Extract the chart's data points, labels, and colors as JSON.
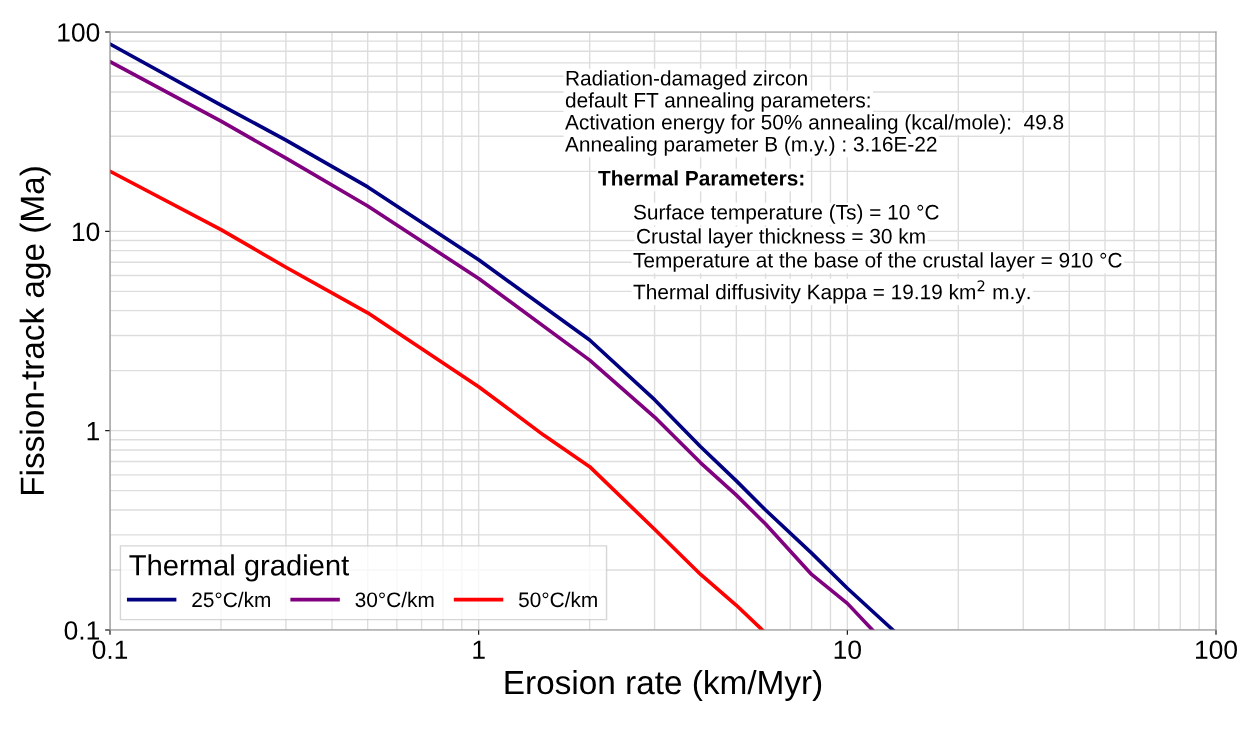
{
  "chart_data": {
    "type": "line",
    "xlabel": "Erosion rate (km/Myr)",
    "ylabel": "Fission-track age (Ma)",
    "legend_title": "Thermal gradient",
    "log": "xy",
    "grid": true,
    "legend": "bottom left",
    "marker": "none",
    "line_style": "solid",
    "xlim": [
      0.1,
      100
    ],
    "xticks": [
      0.1,
      1,
      10,
      100
    ],
    "ylim": [
      0.1,
      100
    ],
    "yticks": [
      0.1,
      1,
      10,
      100
    ],
    "series": [
      {
        "name": "25°C/km",
        "color": "#000080",
        "x": [
          0.1,
          0.2,
          0.3,
          0.5,
          1,
          2,
          3,
          4,
          5,
          6,
          8,
          10,
          13.3
        ],
        "values": [
          87,
          43,
          28.7,
          16.7,
          7.2,
          2.85,
          1.43,
          0.83,
          0.56,
          0.4,
          0.243,
          0.162,
          0.1
        ]
      },
      {
        "name": "30°C/km",
        "color": "#800080",
        "x": [
          0.1,
          0.2,
          0.3,
          0.5,
          1,
          2,
          3,
          4,
          5,
          6,
          8,
          10,
          11.7
        ],
        "values": [
          71,
          35.7,
          23.3,
          13.4,
          5.8,
          2.26,
          1.17,
          0.69,
          0.475,
          0.34,
          0.19,
          0.136,
          0.1
        ]
      },
      {
        "name": "50°C/km",
        "color": "#ff0000",
        "x": [
          0.1,
          0.2,
          0.3,
          0.5,
          1,
          1.5,
          2,
          3,
          4,
          5,
          5.88
        ],
        "values": [
          20,
          10.2,
          6.6,
          3.9,
          1.66,
          0.95,
          0.66,
          0.32,
          0.19,
          0.133,
          0.1
        ]
      }
    ],
    "annotations": [
      "Radiation-damaged zircon",
      "default FT annealing parameters:",
      "Activation energy for 50% annealing (kcal/mole):  49.8",
      "Annealing parameter B (m.y.) : 3.16E-22",
      "Thermal Parameters:",
      "Surface temperature (Ts) = 10 °C",
      "Crustal layer thickness = 30 km",
      "Temperature at the base of the crustal layer = 910 °C",
      "Thermal diffusivity Kappa = 19.19 km$^{2}$ m.y."
    ]
  }
}
